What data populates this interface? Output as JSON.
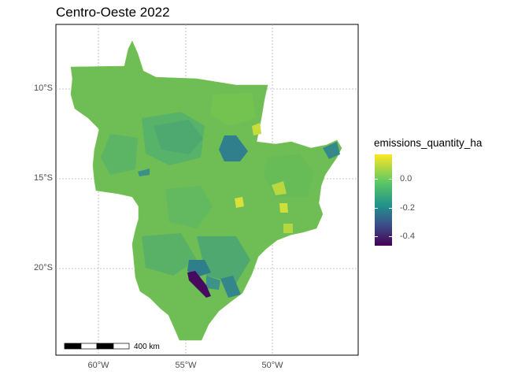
{
  "title": "Centro-Oeste 2022",
  "axes": {
    "y_labels": [
      "10°S",
      "15°S",
      "20°S"
    ],
    "x_labels": [
      "60°W",
      "55°W",
      "50°W"
    ],
    "grid": true
  },
  "legend": {
    "title": "emissions_quantity_ha",
    "labels": [
      "0.0",
      "-0.2",
      "-0.4"
    ],
    "colors": [
      "#fde725",
      "#5ec962",
      "#21918c",
      "#3b528b",
      "#440154"
    ]
  },
  "scalebar": {
    "label": "400 km"
  },
  "colors": {
    "base_region": "#6fbe55",
    "mid_region": "#4fae6b",
    "teal_region": "#2e8c89",
    "dark_blue": "#2f5f8a",
    "darkest": "#460b5e",
    "yellow": "#d8e03a"
  }
}
